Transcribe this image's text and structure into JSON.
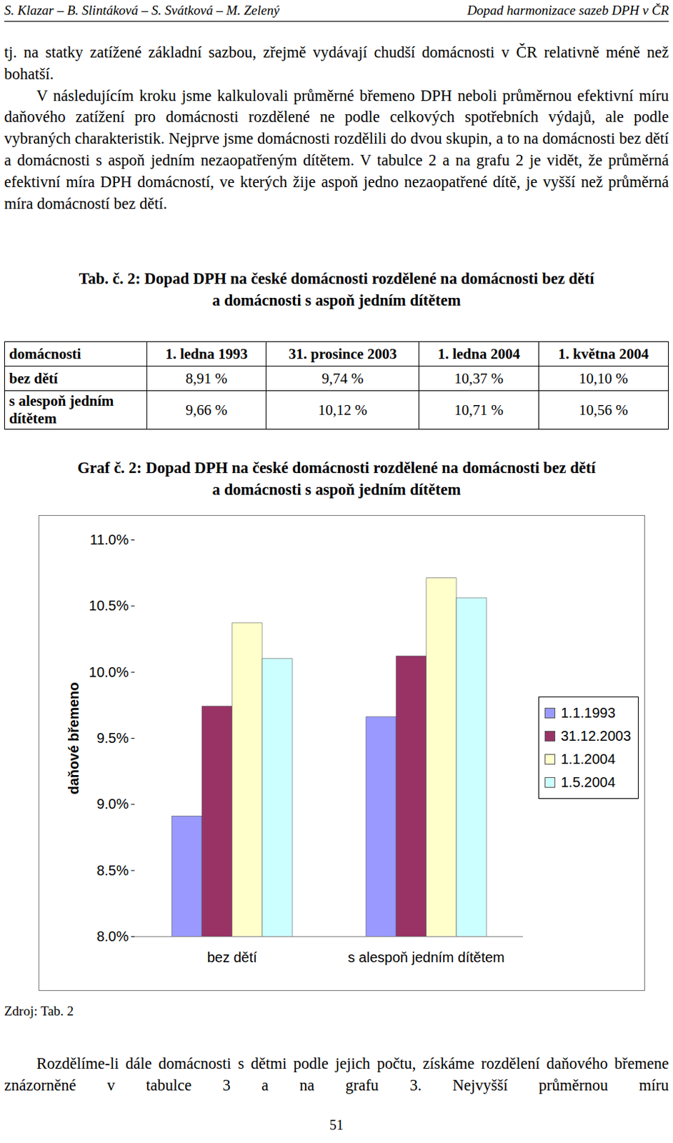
{
  "header": {
    "left": "S. Klazar – B. Slintáková – S. Svátková – M. Zelený",
    "right": "Dopad harmonizace sazeb DPH v ČR"
  },
  "paragraphs_before": [
    "tj. na statky zatížené základní sazbou, zřejmě vydávají chudší domácnosti v ČR relativně méně než bohatší.",
    "V následujícím kroku jsme kalkulovali průměrné břemeno DPH neboli průměrnou efektivní míru daňového zatížení pro domácnosti rozdělené ne podle celkových spotřebních výdajů, ale podle vybraných charakteristik. Nejprve jsme domácnosti rozdělili do dvou skupin, a to na domácnosti bez dětí a domácnosti s aspoň jedním nezaopatřeným dítětem. V tabulce 2 a na grafu 2 je vidět, že průměrná efektivní míra DPH domácností, ve kterých žije aspoň jedno nezaopatřené dítě, je vyšší než průměrná míra domácností bez dětí."
  ],
  "table": {
    "title_lines": [
      "Tab. č. 2: Dopad DPH na české domácnosti rozdělené na domácnosti bez dětí",
      "a domácnosti s aspoň jedním dítětem"
    ],
    "columns": [
      "domácnosti",
      "1. ledna 1993",
      "31. prosince 2003",
      "1. ledna 2004",
      "1. května 2004"
    ],
    "rows": [
      [
        "bez dětí",
        "8,91 %",
        "9,74 %",
        "10,37 %",
        "10,10 %"
      ],
      [
        "s alespoň jedním dítětem",
        "9,66 %",
        "10,12 %",
        "10,71 %",
        "10,56 %"
      ]
    ]
  },
  "chart_data": {
    "type": "bar",
    "title_lines": [
      "Graf č. 2: Dopad DPH na české domácnosti rozdělené na domácnosti bez dětí",
      "a domácnosti s aspoň jedním dítětem"
    ],
    "ylabel": "daňové břemeno",
    "categories": [
      "bez dětí",
      "s alespoň jedním dítětem"
    ],
    "series": [
      {
        "name": "1.1.1993",
        "color": "#9999ff",
        "values": [
          8.91,
          9.66
        ]
      },
      {
        "name": "31.12.2003",
        "color": "#993366",
        "values": [
          9.74,
          10.12
        ]
      },
      {
        "name": "1.1.2004",
        "color": "#ffffcc",
        "values": [
          10.37,
          10.71
        ]
      },
      {
        "name": "1.5.2004",
        "color": "#ccffff",
        "values": [
          10.1,
          10.56
        ]
      }
    ],
    "ylim": [
      8,
      11
    ],
    "yticks": [
      {
        "value": 8,
        "label": "8.0%"
      },
      {
        "value": 8.5,
        "label": "8.5%"
      },
      {
        "value": 9,
        "label": "9.0%"
      },
      {
        "value": 9.5,
        "label": "9.5%"
      },
      {
        "value": 10,
        "label": "10.0%"
      },
      {
        "value": 10.5,
        "label": "10.5%"
      },
      {
        "value": 11,
        "label": "11.0%"
      }
    ],
    "grid": false,
    "legend": "right",
    "data_labels": false
  },
  "source": "Zdroj: Tab. 2",
  "paragraphs_after": [
    "Rozdělíme-li dále domácnosti s dětmi podle jejich počtu, získáme rozdělení daňového břemene znázorněné v tabulce 3 a na grafu 3. Nejvyšší průměrnou míru"
  ],
  "page_number": "51"
}
